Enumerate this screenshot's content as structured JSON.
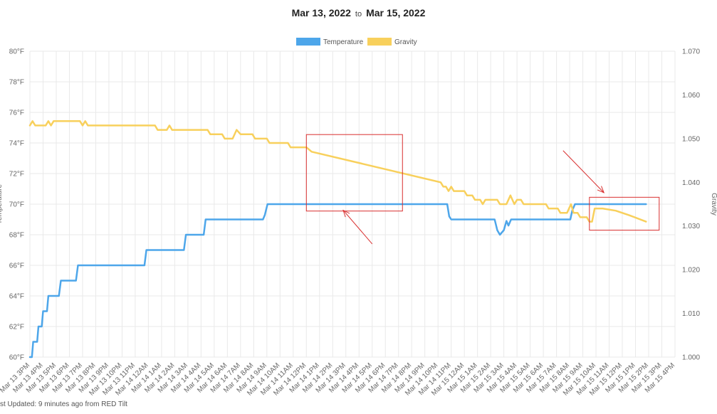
{
  "header": {
    "start_date": "Mar 13, 2022",
    "to_word": "to",
    "end_date": "Mar 15, 2022"
  },
  "footer": {
    "text": "st Updated: 9 minutes ago from RED Tilt"
  },
  "colors": {
    "temperature": "#4da6ea",
    "gravity": "#f8d05c",
    "annotation": "#d92f2f",
    "grid": "#e9e9e9",
    "text": "#666666"
  },
  "chart_data": {
    "type": "line",
    "title": "",
    "legend": {
      "placement": "top-center",
      "entries": [
        "Temperature",
        "Gravity"
      ]
    },
    "grid": true,
    "x": [
      "Mar 13 3PM",
      "Mar 13 4PM",
      "Mar 13 5PM",
      "Mar 13 6PM",
      "Mar 13 7PM",
      "Mar 13 8PM",
      "Mar 13 9PM",
      "Mar 13 10PM",
      "Mar 13 11PM",
      "Mar 14 12AM",
      "Mar 14 1AM",
      "Mar 14 2AM",
      "Mar 14 3AM",
      "Mar 14 4AM",
      "Mar 14 5AM",
      "Mar 14 6AM",
      "Mar 14 7AM",
      "Mar 14 8AM",
      "Mar 14 9AM",
      "Mar 14 10AM",
      "Mar 14 11AM",
      "Mar 14 12PM",
      "Mar 14 1PM",
      "Mar 14 2PM",
      "Mar 14 3PM",
      "Mar 14 4PM",
      "Mar 14 5PM",
      "Mar 14 6PM",
      "Mar 14 7PM",
      "Mar 14 8PM",
      "Mar 14 9PM",
      "Mar 14 10PM",
      "Mar 14 11PM",
      "Mar 15 12AM",
      "Mar 15 1AM",
      "Mar 15 2AM",
      "Mar 15 3AM",
      "Mar 15 4AM",
      "Mar 15 5AM",
      "Mar 15 6AM",
      "Mar 15 7AM",
      "Mar 15 8AM",
      "Mar 15 9AM",
      "Mar 15 10AM",
      "Mar 15 11AM",
      "Mar 15 12PM",
      "Mar 15 1PM",
      "Mar 15 2PM",
      "Mar 15 3PM",
      "Mar 15 4PM"
    ],
    "y_left": {
      "label": "Temperature",
      "range": [
        60,
        80
      ],
      "ticks": [
        "60°F",
        "62°F",
        "64°F",
        "66°F",
        "68°F",
        "70°F",
        "72°F",
        "74°F",
        "76°F",
        "78°F",
        "80°F"
      ]
    },
    "y_right": {
      "label": "Gravity",
      "range": [
        1.0,
        1.07
      ],
      "ticks": [
        "1.000",
        "1.010",
        "1.020",
        "1.030",
        "1.040",
        "1.050",
        "1.060",
        "1.070"
      ]
    },
    "series": [
      {
        "name": "Temperature",
        "axis": "left",
        "points": [
          [
            0.0,
            60
          ],
          [
            0.15,
            60
          ],
          [
            0.25,
            61
          ],
          [
            0.55,
            61
          ],
          [
            0.65,
            62
          ],
          [
            0.9,
            62
          ],
          [
            1.0,
            63
          ],
          [
            1.3,
            63
          ],
          [
            1.4,
            64
          ],
          [
            2.2,
            64
          ],
          [
            2.35,
            65
          ],
          [
            3.5,
            65
          ],
          [
            3.65,
            66
          ],
          [
            8.7,
            66
          ],
          [
            8.85,
            67
          ],
          [
            11.7,
            67
          ],
          [
            11.85,
            68
          ],
          [
            13.2,
            68
          ],
          [
            13.35,
            69
          ],
          [
            17.7,
            69
          ],
          [
            17.85,
            69.3
          ],
          [
            18.05,
            70
          ],
          [
            31.7,
            70
          ],
          [
            31.85,
            69.2
          ],
          [
            32.0,
            69
          ],
          [
            35.3,
            69
          ],
          [
            35.5,
            68.3
          ],
          [
            35.7,
            68
          ],
          [
            36.0,
            68.3
          ],
          [
            36.2,
            68.9
          ],
          [
            36.35,
            68.6
          ],
          [
            36.55,
            69
          ],
          [
            41.05,
            69
          ],
          [
            41.2,
            69.6
          ],
          [
            41.4,
            70
          ],
          [
            46.8,
            70
          ]
        ]
      },
      {
        "name": "Gravity",
        "axis": "right",
        "points": [
          [
            0.0,
            1.053
          ],
          [
            0.2,
            1.054
          ],
          [
            0.4,
            1.053
          ],
          [
            1.2,
            1.053
          ],
          [
            1.4,
            1.054
          ],
          [
            1.6,
            1.053
          ],
          [
            1.8,
            1.054
          ],
          [
            3.8,
            1.054
          ],
          [
            4.0,
            1.053
          ],
          [
            4.2,
            1.054
          ],
          [
            4.4,
            1.053
          ],
          [
            9.5,
            1.053
          ],
          [
            9.7,
            1.052
          ],
          [
            10.4,
            1.052
          ],
          [
            10.6,
            1.053
          ],
          [
            10.8,
            1.052
          ],
          [
            13.5,
            1.052
          ],
          [
            13.7,
            1.051
          ],
          [
            14.6,
            1.051
          ],
          [
            14.8,
            1.05
          ],
          [
            15.4,
            1.05
          ],
          [
            15.7,
            1.052
          ],
          [
            16.0,
            1.051
          ],
          [
            16.9,
            1.051
          ],
          [
            17.1,
            1.05
          ],
          [
            18.0,
            1.05
          ],
          [
            18.2,
            1.049
          ],
          [
            19.6,
            1.049
          ],
          [
            19.8,
            1.048
          ],
          [
            21.0,
            1.048
          ],
          [
            21.4,
            1.047
          ],
          [
            31.2,
            1.04
          ],
          [
            31.4,
            1.039
          ],
          [
            31.6,
            1.039
          ],
          [
            31.8,
            1.038
          ],
          [
            32.0,
            1.039
          ],
          [
            32.2,
            1.038
          ],
          [
            33.0,
            1.038
          ],
          [
            33.2,
            1.037
          ],
          [
            33.6,
            1.037
          ],
          [
            33.8,
            1.036
          ],
          [
            34.2,
            1.036
          ],
          [
            34.4,
            1.035
          ],
          [
            34.6,
            1.036
          ],
          [
            35.5,
            1.036
          ],
          [
            35.7,
            1.035
          ],
          [
            36.2,
            1.035
          ],
          [
            36.5,
            1.037
          ],
          [
            36.8,
            1.035
          ],
          [
            37.0,
            1.036
          ],
          [
            37.3,
            1.036
          ],
          [
            37.5,
            1.035
          ],
          [
            39.2,
            1.035
          ],
          [
            39.4,
            1.034
          ],
          [
            40.1,
            1.034
          ],
          [
            40.3,
            1.033
          ],
          [
            40.8,
            1.033
          ],
          [
            41.1,
            1.035
          ],
          [
            41.3,
            1.033
          ],
          [
            41.6,
            1.033
          ],
          [
            41.8,
            1.032
          ],
          [
            42.3,
            1.032
          ],
          [
            42.5,
            1.031
          ],
          [
            42.7,
            1.031
          ],
          [
            42.9,
            1.034
          ],
          [
            43.5,
            1.034
          ],
          [
            44.5,
            1.0335
          ],
          [
            45.5,
            1.0325
          ],
          [
            46.8,
            1.031
          ]
        ]
      }
    ],
    "annotations": [
      {
        "type": "box",
        "x": [
          21.0,
          28.3
        ],
        "y_left": [
          69.55,
          74.55
        ]
      },
      {
        "type": "arrow",
        "from": [
          26.0,
          67.4
        ],
        "to": [
          23.8,
          69.6
        ]
      },
      {
        "type": "box",
        "x": [
          42.5,
          47.8
        ],
        "y_left": [
          68.3,
          70.45
        ]
      },
      {
        "type": "arrow",
        "from": [
          40.5,
          73.5
        ],
        "to": [
          43.6,
          70.75
        ]
      }
    ]
  }
}
